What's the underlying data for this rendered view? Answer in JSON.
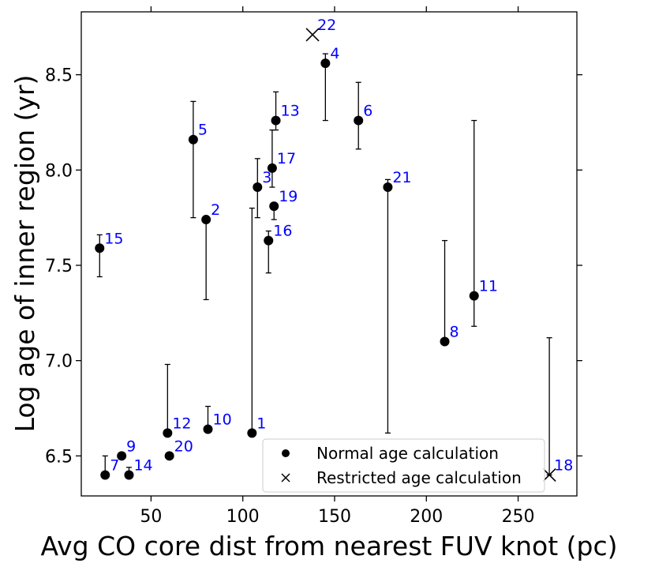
{
  "chart_data": {
    "type": "scatter",
    "title": "",
    "xlabel": "Avg CO core dist from nearest FUV knot (pc)",
    "ylabel": "Log age of inner region (yr)",
    "xlim": [
      12,
      282
    ],
    "ylim": [
      6.29,
      8.83
    ],
    "xticks": [
      50,
      100,
      150,
      200,
      250
    ],
    "xtick_labels": [
      "50",
      "100",
      "150",
      "200",
      "250"
    ],
    "yticks": [
      6.5,
      7.0,
      7.5,
      8.0,
      8.5
    ],
    "ytick_labels": [
      "6.5",
      "7.0",
      "7.5",
      "8.0",
      "8.5"
    ],
    "label_color": "#0000ff",
    "marker_color": "#000000",
    "legend": {
      "position": "lower-right",
      "entries": [
        {
          "marker": "dot",
          "label": "Normal age calculation"
        },
        {
          "marker": "x",
          "label": "Restricted age calculation"
        }
      ]
    },
    "points": [
      {
        "label": "1",
        "x": 105.0,
        "y": 6.62,
        "lo": 6.62,
        "hi": 7.8,
        "marker": "dot"
      },
      {
        "label": "2",
        "x": 80.0,
        "y": 7.74,
        "lo": 7.32,
        "hi": 7.74,
        "marker": "dot"
      },
      {
        "label": "3",
        "x": 108.0,
        "y": 7.91,
        "lo": 7.75,
        "hi": 8.06,
        "marker": "dot"
      },
      {
        "label": "4",
        "x": 145.0,
        "y": 8.56,
        "lo": 8.26,
        "hi": 8.61,
        "marker": "dot"
      },
      {
        "label": "5",
        "x": 73.0,
        "y": 8.16,
        "lo": 7.75,
        "hi": 8.36,
        "marker": "dot"
      },
      {
        "label": "6",
        "x": 163.0,
        "y": 8.26,
        "lo": 8.11,
        "hi": 8.46,
        "marker": "dot"
      },
      {
        "label": "7",
        "x": 25.0,
        "y": 6.4,
        "lo": 6.4,
        "hi": 6.5,
        "marker": "dot"
      },
      {
        "label": "8",
        "x": 210.0,
        "y": 7.1,
        "lo": 7.1,
        "hi": 7.63,
        "marker": "dot"
      },
      {
        "label": "9",
        "x": 34.0,
        "y": 6.5,
        "lo": 6.5,
        "hi": 6.5,
        "marker": "dot"
      },
      {
        "label": "10",
        "x": 81.0,
        "y": 6.64,
        "lo": 6.64,
        "hi": 6.76,
        "marker": "dot"
      },
      {
        "label": "11",
        "x": 226.0,
        "y": 7.34,
        "lo": 7.18,
        "hi": 8.26,
        "marker": "dot"
      },
      {
        "label": "12",
        "x": 59.0,
        "y": 6.62,
        "lo": 6.62,
        "hi": 6.98,
        "marker": "dot"
      },
      {
        "label": "13",
        "x": 118.0,
        "y": 8.26,
        "lo": 8.21,
        "hi": 8.41,
        "marker": "dot"
      },
      {
        "label": "14",
        "x": 38.0,
        "y": 6.4,
        "lo": 6.4,
        "hi": 6.44,
        "marker": "dot"
      },
      {
        "label": "15",
        "x": 22.0,
        "y": 7.59,
        "lo": 7.44,
        "hi": 7.66,
        "marker": "dot"
      },
      {
        "label": "16",
        "x": 114.0,
        "y": 7.63,
        "lo": 7.46,
        "hi": 7.68,
        "marker": "dot"
      },
      {
        "label": "17",
        "x": 116.0,
        "y": 8.01,
        "lo": 7.91,
        "hi": 8.21,
        "marker": "dot"
      },
      {
        "label": "18",
        "x": 267.0,
        "y": 6.4,
        "lo": 6.4,
        "hi": 7.12,
        "marker": "x"
      },
      {
        "label": "19",
        "x": 117.0,
        "y": 7.81,
        "lo": 7.74,
        "hi": 7.81,
        "marker": "dot"
      },
      {
        "label": "20",
        "x": 60.0,
        "y": 6.5,
        "lo": 6.5,
        "hi": 6.5,
        "marker": "dot"
      },
      {
        "label": "21",
        "x": 179.0,
        "y": 7.91,
        "lo": 6.62,
        "hi": 7.95,
        "marker": "dot"
      },
      {
        "label": "22",
        "x": 138.0,
        "y": 8.71,
        "lo": 8.71,
        "hi": 8.71,
        "marker": "x"
      }
    ]
  }
}
